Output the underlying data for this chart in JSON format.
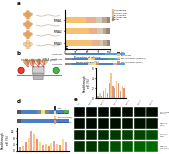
{
  "colors": {
    "blue": "#4a7fc1",
    "blue2": "#5a9fd4",
    "green": "#4caf50",
    "orange": "#f5a623",
    "red": "#e53935",
    "gray": "#aaaaaa",
    "light_orange": "#f5c98a",
    "salmon": "#f0907a",
    "yellow": "#f5e080",
    "pink": "#e8a0b0",
    "purple": "#b090c0",
    "dark_gray": "#555555",
    "light_gray": "#dddddd",
    "bg": "#ffffff",
    "tRNA_orange": "#e8a060",
    "tRNA_light": "#f0d0a0",
    "tRNA_body": "#d4a870"
  },
  "panel_a_bars": {
    "n_bars": 3,
    "bar_colors": [
      "#f5c070",
      "#e8b090",
      "#d4c8b0",
      "#b8a890",
      "#9a8870"
    ],
    "xlim": [
      0,
      100
    ],
    "tick_positions": [
      0,
      25,
      50,
      75,
      100
    ]
  },
  "panel_b_bar_colors": [
    "#333333",
    "#f5d060",
    "#f5a040",
    "#f58060"
  ],
  "panel_c_bars": {
    "values": [
      0.5,
      1.0,
      0.5,
      1.5,
      2.0,
      1.0,
      3.0,
      5.0,
      2.5,
      2.0,
      3.5,
      3.0,
      1.5,
      2.5,
      2.0
    ],
    "ylim": [
      0,
      6
    ]
  },
  "panel_e_bars": {
    "values": [
      2.0,
      3.0,
      5.0,
      8.0,
      12.0,
      10.0,
      7.0,
      5.0,
      3.5,
      4.0,
      3.0,
      4.5,
      6.0,
      4.0,
      3.5,
      7.0,
      5.0
    ],
    "ylim": [
      0,
      14
    ]
  },
  "fluorescence_grid": {
    "n_rows": 4,
    "n_cols": 7,
    "row_greens": [
      0.04,
      0.06,
      0.25,
      0.35
    ],
    "col_scale": [
      0.5,
      0.6,
      0.7,
      0.9,
      1.0,
      1.1,
      1.2
    ]
  }
}
